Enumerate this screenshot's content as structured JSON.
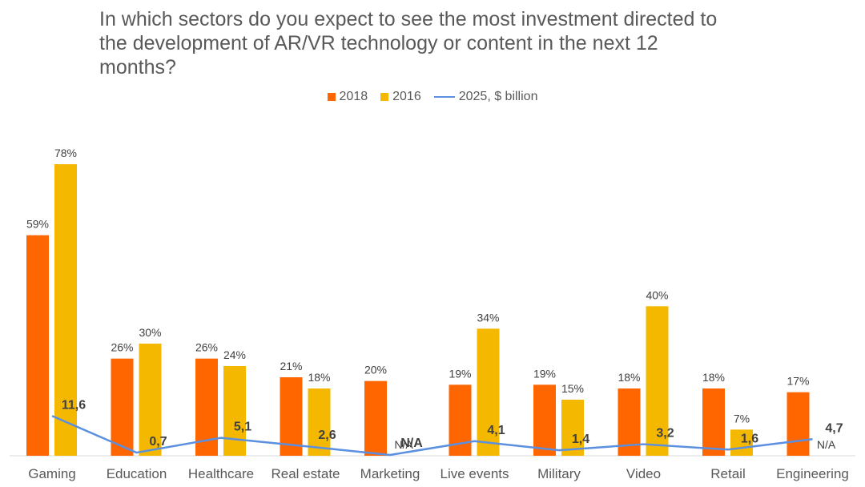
{
  "chart_data": {
    "type": "bar",
    "title": "In which sectors do you expect to see the most investment directed to\nthe development of AR/VR technology or content in the next 12\nmonths?",
    "categories": [
      "Gaming",
      "Education",
      "Healthcare",
      "Real estate",
      "Marketing",
      "Live events",
      "Military",
      "Video",
      "Retail",
      "Engineering"
    ],
    "series": [
      {
        "name": "2018",
        "type": "bar",
        "color": "#FF6600",
        "values": [
          59,
          26,
          26,
          21,
          20,
          19,
          19,
          18,
          18,
          17
        ],
        "labels": [
          "59%",
          "26%",
          "26%",
          "21%",
          "20%",
          "19%",
          "19%",
          "18%",
          "18%",
          "17%"
        ]
      },
      {
        "name": "2016",
        "type": "bar",
        "color": "#F5B800",
        "values": [
          78,
          30,
          24,
          18,
          null,
          34,
          15,
          40,
          7,
          null
        ],
        "labels": [
          "78%",
          "30%",
          "24%",
          "18%",
          "N/A",
          "34%",
          "15%",
          "40%",
          "7%",
          "N/A"
        ]
      },
      {
        "name": "2025, $ billion",
        "type": "line",
        "color": "#5B8FE0",
        "values": [
          11.6,
          0.7,
          5.1,
          2.6,
          null,
          4.1,
          1.4,
          3.2,
          1.6,
          4.7
        ],
        "labels": [
          "11,6",
          "0,7",
          "5,1",
          "2,6",
          "N/A",
          "4,1",
          "1,4",
          "3,2",
          "1,6",
          "4,7"
        ]
      }
    ],
    "legend": "top-center",
    "grid": false
  }
}
